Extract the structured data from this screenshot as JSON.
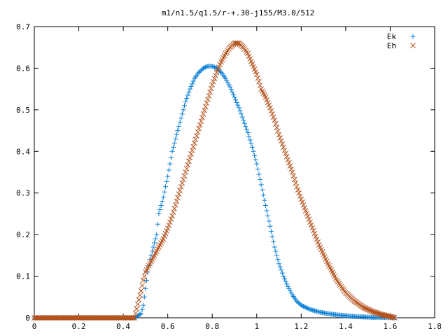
{
  "chart_data": {
    "type": "scatter",
    "title": "m1/n1.5/q1.5/r-+.30-j155/M3.0/512",
    "xlim": [
      0,
      1.8
    ],
    "ylim": [
      0,
      0.7
    ],
    "xticks": [
      "0",
      "0.2",
      "0.4",
      "0.6",
      "0.8",
      "1",
      "1.2",
      "1.4",
      "1.6",
      "1.8"
    ],
    "yticks": [
      "0",
      "0.1",
      "0.2",
      "0.3",
      "0.4",
      "0.5",
      "0.6",
      "0.7"
    ],
    "grid": false,
    "legend_position": "top-right",
    "series": [
      {
        "name": "Ek",
        "marker": "+",
        "color": "#0a7fd6",
        "x": [
          0,
          0.05,
          0.1,
          0.15,
          0.2,
          0.25,
          0.3,
          0.35,
          0.4,
          0.45,
          0.48,
          0.49,
          0.5,
          0.51,
          0.52,
          0.53,
          0.54,
          0.55,
          0.56,
          0.57,
          0.58,
          0.6,
          0.62,
          0.64,
          0.66,
          0.68,
          0.7,
          0.72,
          0.74,
          0.76,
          0.78,
          0.8,
          0.82,
          0.84,
          0.86,
          0.88,
          0.9,
          0.92,
          0.94,
          0.96,
          0.98,
          1.0,
          1.02,
          1.04,
          1.06,
          1.08,
          1.1,
          1.12,
          1.14,
          1.16,
          1.18,
          1.2,
          1.24,
          1.28,
          1.32,
          1.36,
          1.4,
          1.44,
          1.48,
          1.52,
          1.56,
          1.6,
          1.62
        ],
        "y": [
          0,
          0,
          0,
          0,
          0,
          0,
          0,
          0,
          0,
          0,
          0.01,
          0.03,
          0.07,
          0.11,
          0.14,
          0.16,
          0.18,
          0.2,
          0.25,
          0.27,
          0.29,
          0.34,
          0.4,
          0.44,
          0.48,
          0.52,
          0.55,
          0.575,
          0.59,
          0.6,
          0.605,
          0.605,
          0.6,
          0.59,
          0.575,
          0.555,
          0.53,
          0.505,
          0.475,
          0.445,
          0.41,
          0.37,
          0.32,
          0.27,
          0.22,
          0.17,
          0.13,
          0.1,
          0.075,
          0.055,
          0.04,
          0.03,
          0.02,
          0.014,
          0.01,
          0.007,
          0.005,
          0.003,
          0.002,
          0.001,
          0.001,
          0.0005,
          0
        ]
      },
      {
        "name": "Eh",
        "marker": "x",
        "color": "#b5531d",
        "x": [
          0,
          0.05,
          0.1,
          0.15,
          0.2,
          0.25,
          0.3,
          0.35,
          0.4,
          0.45,
          0.48,
          0.49,
          0.5,
          0.52,
          0.54,
          0.56,
          0.58,
          0.6,
          0.62,
          0.64,
          0.66,
          0.68,
          0.7,
          0.72,
          0.74,
          0.76,
          0.78,
          0.8,
          0.82,
          0.84,
          0.86,
          0.88,
          0.9,
          0.92,
          0.94,
          0.96,
          0.98,
          1.0,
          1.02,
          1.04,
          1.06,
          1.08,
          1.1,
          1.12,
          1.14,
          1.16,
          1.18,
          1.2,
          1.24,
          1.28,
          1.32,
          1.36,
          1.4,
          1.44,
          1.48,
          1.52,
          1.56,
          1.6,
          1.62
        ],
        "y": [
          0,
          0,
          0,
          0,
          0,
          0,
          0,
          0,
          0,
          0,
          0.065,
          0.09,
          0.11,
          0.13,
          0.15,
          0.17,
          0.19,
          0.215,
          0.245,
          0.28,
          0.315,
          0.35,
          0.385,
          0.42,
          0.455,
          0.49,
          0.525,
          0.56,
          0.59,
          0.615,
          0.635,
          0.65,
          0.66,
          0.66,
          0.65,
          0.635,
          0.61,
          0.585,
          0.55,
          0.53,
          0.505,
          0.475,
          0.44,
          0.41,
          0.38,
          0.35,
          0.315,
          0.285,
          0.23,
          0.175,
          0.13,
          0.09,
          0.06,
          0.04,
          0.025,
          0.015,
          0.008,
          0.003,
          0
        ]
      }
    ]
  }
}
